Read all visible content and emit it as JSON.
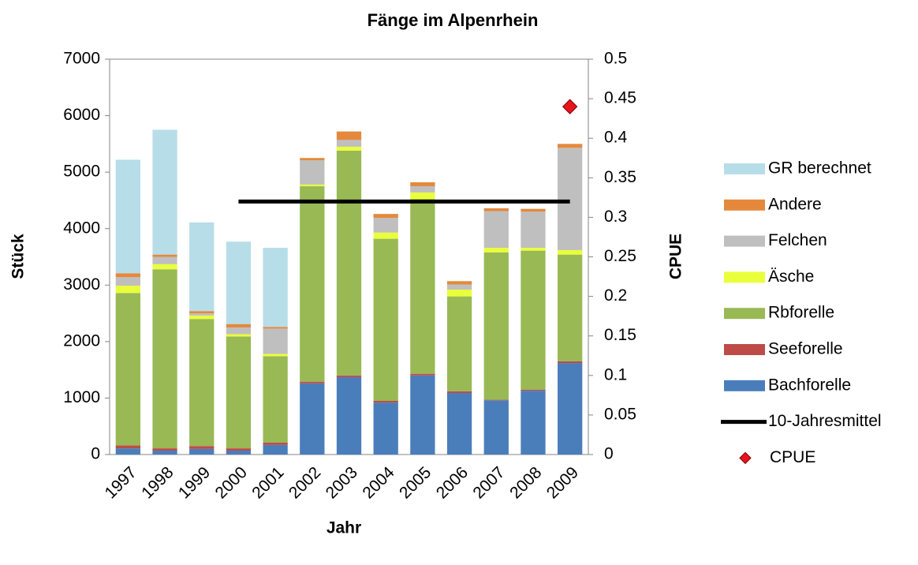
{
  "chart_data": {
    "type": "bar",
    "stacked": true,
    "title": "Fänge im Alpenrhein",
    "xlabel": "Jahr",
    "ylabel": "Stück",
    "y2label": "CPUE",
    "categories": [
      "1997",
      "1998",
      "1999",
      "2000",
      "2001",
      "2002",
      "2003",
      "2004",
      "2005",
      "2006",
      "2007",
      "2008",
      "2009"
    ],
    "ylim": [
      0,
      7000
    ],
    "yticks": [
      0,
      1000,
      2000,
      3000,
      4000,
      5000,
      6000,
      7000
    ],
    "y2lim": [
      0,
      0.5
    ],
    "y2ticks": [
      0,
      0.05,
      0.1,
      0.15,
      0.2,
      0.25,
      0.3,
      0.35,
      0.4,
      0.45,
      0.5
    ],
    "grid": false,
    "legend": "right",
    "series": [
      {
        "name": "Bachforelle",
        "kind": "bar",
        "color": "#4a7ebb",
        "values": [
          110,
          70,
          100,
          70,
          170,
          1260,
          1370,
          920,
          1400,
          1090,
          960,
          1130,
          1620
        ]
      },
      {
        "name": "Seeforelle",
        "kind": "bar",
        "color": "#be4b48",
        "values": [
          50,
          40,
          50,
          40,
          40,
          30,
          30,
          30,
          30,
          30,
          10,
          20,
          30
        ]
      },
      {
        "name": "Rbforelle",
        "kind": "bar",
        "color": "#98b954",
        "values": [
          2700,
          3170,
          2250,
          1980,
          1530,
          3460,
          3980,
          2870,
          3090,
          1680,
          2610,
          2460,
          1890
        ]
      },
      {
        "name": "Äsche",
        "kind": "bar",
        "color": "#eaff3c",
        "values": [
          130,
          90,
          60,
          40,
          40,
          30,
          70,
          110,
          120,
          120,
          80,
          50,
          80
        ]
      },
      {
        "name": "Felchen",
        "kind": "bar",
        "color": "#bfbfbf",
        "values": [
          150,
          130,
          40,
          120,
          450,
          430,
          120,
          260,
          110,
          90,
          650,
          640,
          1810
        ]
      },
      {
        "name": "Andere",
        "kind": "bar",
        "color": "#e4893c",
        "values": [
          70,
          40,
          40,
          60,
          30,
          40,
          150,
          70,
          70,
          60,
          50,
          50,
          70
        ]
      },
      {
        "name": "GR berechnet",
        "kind": "bar",
        "color": "#b7dde8",
        "values": [
          2010,
          2210,
          1570,
          1460,
          1400,
          0,
          0,
          0,
          0,
          0,
          0,
          0,
          0
        ]
      },
      {
        "name": "10-Jahresmittel",
        "kind": "line",
        "axis": "y2",
        "color": "#000000",
        "values": [
          null,
          null,
          null,
          0.32,
          0.32,
          0.32,
          0.32,
          0.32,
          0.32,
          0.32,
          0.32,
          0.32,
          0.32
        ]
      },
      {
        "name": "CPUE",
        "kind": "scatter",
        "axis": "y2",
        "color": "#e8141c",
        "values": [
          null,
          null,
          null,
          null,
          null,
          null,
          null,
          null,
          null,
          null,
          null,
          null,
          0.44
        ]
      }
    ]
  }
}
